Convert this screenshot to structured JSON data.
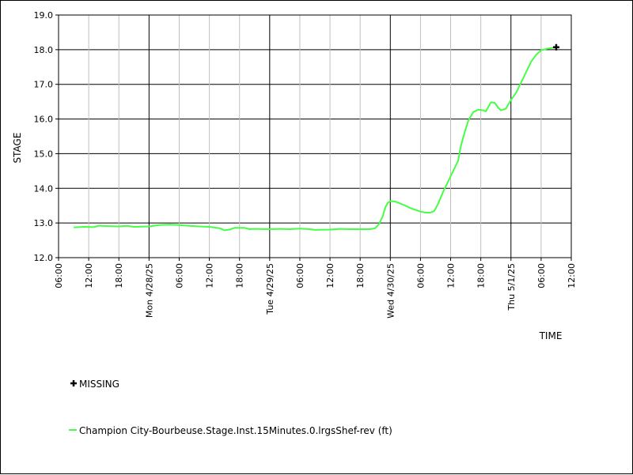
{
  "chart_data": {
    "type": "line",
    "title": "",
    "xlabel": "TIME",
    "ylabel": "STAGE",
    "ylim": [
      12.0,
      19.0
    ],
    "xlim": [
      "2025-04-27T06:00",
      "2025-05-01T12:00"
    ],
    "grid": true,
    "y_ticks": [
      "12.0",
      "13.0",
      "14.0",
      "15.0",
      "16.0",
      "17.0",
      "18.0",
      "19.0"
    ],
    "x_ticks": [
      {
        "t": "2025-04-27T06:00",
        "label": "06:00",
        "major": false
      },
      {
        "t": "2025-04-27T12:00",
        "label": "12:00",
        "major": false
      },
      {
        "t": "2025-04-27T18:00",
        "label": "18:00",
        "major": false
      },
      {
        "t": "2025-04-28T00:00",
        "label": "Mon 4/28/25",
        "major": true
      },
      {
        "t": "2025-04-28T06:00",
        "label": "06:00",
        "major": false
      },
      {
        "t": "2025-04-28T12:00",
        "label": "12:00",
        "major": false
      },
      {
        "t": "2025-04-28T18:00",
        "label": "18:00",
        "major": false
      },
      {
        "t": "2025-04-29T00:00",
        "label": "Tue 4/29/25",
        "major": true
      },
      {
        "t": "2025-04-29T06:00",
        "label": "06:00",
        "major": false
      },
      {
        "t": "2025-04-29T12:00",
        "label": "12:00",
        "major": false
      },
      {
        "t": "2025-04-29T18:00",
        "label": "18:00",
        "major": false
      },
      {
        "t": "2025-04-30T00:00",
        "label": "Wed 4/30/25",
        "major": true
      },
      {
        "t": "2025-04-30T06:00",
        "label": "06:00",
        "major": false
      },
      {
        "t": "2025-04-30T12:00",
        "label": "12:00",
        "major": false
      },
      {
        "t": "2025-04-30T18:00",
        "label": "18:00",
        "major": false
      },
      {
        "t": "2025-05-01T00:00",
        "label": "Thu 5/1/25",
        "major": true
      },
      {
        "t": "2025-05-01T06:00",
        "label": "06:00",
        "major": false
      },
      {
        "t": "2025-05-01T12:00",
        "label": "12:00",
        "major": false
      }
    ],
    "series": [
      {
        "name": "Champion City-Bourbeuse.Stage.Inst.15Minutes.0.lrgsShef-rev (ft)",
        "color": "#44ff44",
        "points": [
          [
            "2025-04-27T09:00",
            12.87
          ],
          [
            "2025-04-27T11:00",
            12.89
          ],
          [
            "2025-04-27T13:00",
            12.88
          ],
          [
            "2025-04-27T14:00",
            12.92
          ],
          [
            "2025-04-27T16:00",
            12.91
          ],
          [
            "2025-04-27T18:00",
            12.9
          ],
          [
            "2025-04-27T19:30",
            12.92
          ],
          [
            "2025-04-27T21:00",
            12.89
          ],
          [
            "2025-04-28T00:00",
            12.9
          ],
          [
            "2025-04-28T02:00",
            12.94
          ],
          [
            "2025-04-28T04:00",
            12.95
          ],
          [
            "2025-04-28T06:00",
            12.94
          ],
          [
            "2025-04-28T08:00",
            12.92
          ],
          [
            "2025-04-28T10:00",
            12.9
          ],
          [
            "2025-04-28T12:00",
            12.89
          ],
          [
            "2025-04-28T14:00",
            12.85
          ],
          [
            "2025-04-28T15:00",
            12.79
          ],
          [
            "2025-04-28T16:00",
            12.81
          ],
          [
            "2025-04-28T17:00",
            12.86
          ],
          [
            "2025-04-28T19:00",
            12.86
          ],
          [
            "2025-04-28T20:00",
            12.82
          ],
          [
            "2025-04-28T21:00",
            12.83
          ],
          [
            "2025-04-29T00:00",
            12.82
          ],
          [
            "2025-04-29T02:00",
            12.83
          ],
          [
            "2025-04-29T04:00",
            12.82
          ],
          [
            "2025-04-29T06:00",
            12.84
          ],
          [
            "2025-04-29T08:00",
            12.82
          ],
          [
            "2025-04-29T09:00",
            12.8
          ],
          [
            "2025-04-29T12:00",
            12.81
          ],
          [
            "2025-04-29T14:00",
            12.83
          ],
          [
            "2025-04-29T16:00",
            12.82
          ],
          [
            "2025-04-29T18:00",
            12.82
          ],
          [
            "2025-04-29T20:00",
            12.82
          ],
          [
            "2025-04-29T21:00",
            12.85
          ],
          [
            "2025-04-29T21:45",
            12.97
          ],
          [
            "2025-04-29T22:30",
            13.2
          ],
          [
            "2025-04-29T23:00",
            13.45
          ],
          [
            "2025-04-29T23:30",
            13.58
          ],
          [
            "2025-04-30T00:00",
            13.63
          ],
          [
            "2025-04-30T01:00",
            13.62
          ],
          [
            "2025-04-30T02:00",
            13.56
          ],
          [
            "2025-04-30T03:00",
            13.5
          ],
          [
            "2025-04-30T04:00",
            13.43
          ],
          [
            "2025-04-30T05:00",
            13.38
          ],
          [
            "2025-04-30T06:00",
            13.33
          ],
          [
            "2025-04-30T07:00",
            13.3
          ],
          [
            "2025-04-30T08:00",
            13.3
          ],
          [
            "2025-04-30T08:45",
            13.35
          ],
          [
            "2025-04-30T09:30",
            13.55
          ],
          [
            "2025-04-30T10:30",
            13.9
          ],
          [
            "2025-04-30T11:30",
            14.2
          ],
          [
            "2025-04-30T12:30",
            14.5
          ],
          [
            "2025-04-30T13:30",
            14.8
          ],
          [
            "2025-04-30T14:00",
            15.2
          ],
          [
            "2025-04-30T14:45",
            15.6
          ],
          [
            "2025-04-30T15:30",
            15.95
          ],
          [
            "2025-04-30T16:30",
            16.2
          ],
          [
            "2025-04-30T17:30",
            16.27
          ],
          [
            "2025-04-30T18:30",
            16.25
          ],
          [
            "2025-04-30T19:00",
            16.22
          ],
          [
            "2025-04-30T19:30",
            16.35
          ],
          [
            "2025-04-30T20:00",
            16.48
          ],
          [
            "2025-04-30T20:45",
            16.47
          ],
          [
            "2025-04-30T21:30",
            16.32
          ],
          [
            "2025-04-30T22:00",
            16.25
          ],
          [
            "2025-04-30T23:00",
            16.3
          ],
          [
            "2025-05-01T00:00",
            16.55
          ],
          [
            "2025-05-01T01:00",
            16.75
          ],
          [
            "2025-05-01T02:00",
            17.05
          ],
          [
            "2025-05-01T03:00",
            17.35
          ],
          [
            "2025-05-01T04:00",
            17.65
          ],
          [
            "2025-05-01T05:00",
            17.85
          ],
          [
            "2025-05-01T06:00",
            17.98
          ],
          [
            "2025-05-01T07:00",
            18.02
          ],
          [
            "2025-05-01T08:00",
            18.05
          ],
          [
            "2025-05-01T09:00",
            18.07
          ]
        ]
      }
    ],
    "missing_points": [
      [
        "2025-05-01T09:00",
        18.07
      ]
    ],
    "legend": {
      "placement": "bottom-left",
      "missing_label": "MISSING",
      "series_label": "Champion City-Bourbeuse.Stage.Inst.15Minutes.0.lrgsShef-rev (ft)"
    }
  }
}
